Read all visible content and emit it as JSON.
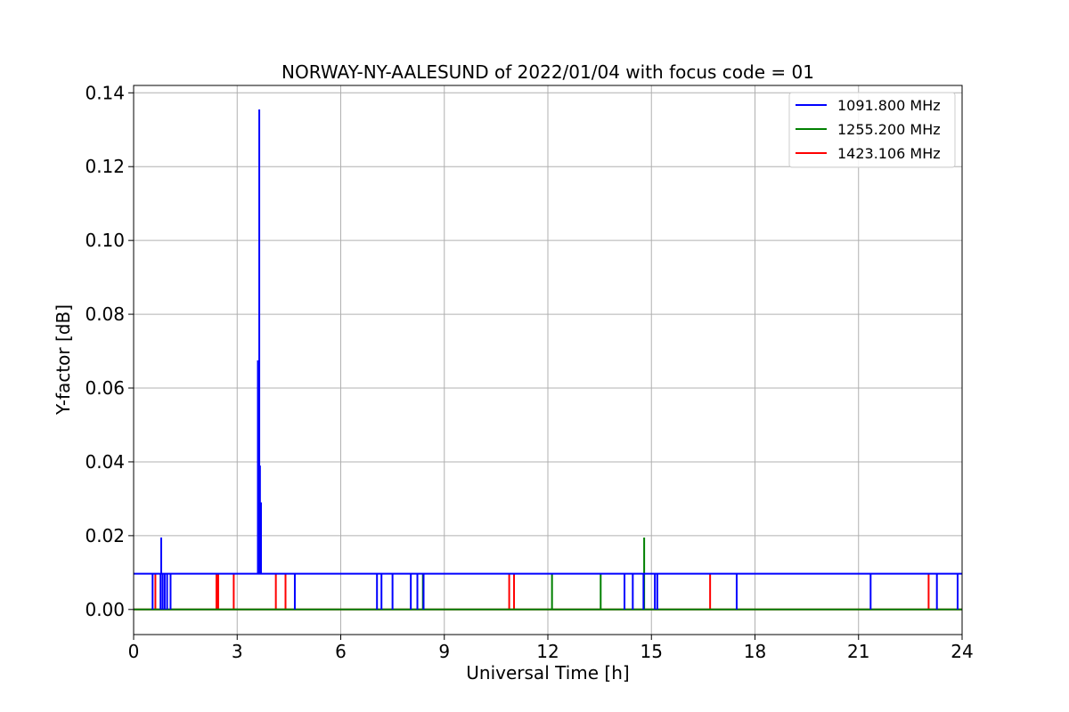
{
  "chart_data": {
    "type": "line",
    "title": "NORWAY-NY-AALESUND of 2022/01/04 with focus code = 01",
    "xlabel": "Universal Time [h]",
    "ylabel": "Y-factor [dB]",
    "xlim": [
      0,
      24
    ],
    "ylim": [
      -0.0068,
      0.142
    ],
    "x_ticks": [
      0,
      3,
      6,
      9,
      12,
      15,
      18,
      21,
      24
    ],
    "x_tick_labels": [
      "0",
      "3",
      "6",
      "9",
      "12",
      "15",
      "18",
      "21",
      "24"
    ],
    "y_ticks": [
      0.0,
      0.02,
      0.04,
      0.06,
      0.08,
      0.1,
      0.12,
      0.14
    ],
    "y_tick_labels": [
      "0.00",
      "0.02",
      "0.04",
      "0.06",
      "0.08",
      "0.10",
      "0.12",
      "0.14"
    ],
    "grid": true,
    "legend_position": "top-right",
    "series": [
      {
        "name": "1091.800 MHz",
        "color": "#0000ff",
        "baseline": 0.0097,
        "spikes": [
          {
            "x": 0.55,
            "y": 0.0
          },
          {
            "x": 0.78,
            "y": 0.0
          },
          {
            "x": 0.8,
            "y": 0.0195
          },
          {
            "x": 0.84,
            "y": 0.0
          },
          {
            "x": 0.9,
            "y": 0.0
          },
          {
            "x": 0.97,
            "y": 0.0
          },
          {
            "x": 1.07,
            "y": 0.0
          },
          {
            "x": 3.6,
            "y": 0.0675
          },
          {
            "x": 3.62,
            "y": 0.058
          },
          {
            "x": 3.64,
            "y": 0.1355
          },
          {
            "x": 3.66,
            "y": 0.039
          },
          {
            "x": 3.69,
            "y": 0.029
          },
          {
            "x": 4.67,
            "y": 0.0
          },
          {
            "x": 7.05,
            "y": 0.0
          },
          {
            "x": 7.18,
            "y": 0.0
          },
          {
            "x": 7.5,
            "y": 0.0
          },
          {
            "x": 8.03,
            "y": 0.0
          },
          {
            "x": 8.22,
            "y": 0.0
          },
          {
            "x": 8.4,
            "y": 0.0
          },
          {
            "x": 14.22,
            "y": 0.0
          },
          {
            "x": 14.46,
            "y": 0.0
          },
          {
            "x": 14.77,
            "y": 0.0
          },
          {
            "x": 15.1,
            "y": 0.0
          },
          {
            "x": 15.17,
            "y": 0.0
          },
          {
            "x": 17.47,
            "y": 0.0
          },
          {
            "x": 21.35,
            "y": 0.0
          },
          {
            "x": 23.27,
            "y": 0.0
          },
          {
            "x": 23.87,
            "y": 0.0
          }
        ]
      },
      {
        "name": "1255.200 MHz",
        "color": "#008000",
        "baseline": 0.0,
        "spikes": [
          {
            "x": 8.38,
            "y": 0.0097
          },
          {
            "x": 12.12,
            "y": 0.0097
          },
          {
            "x": 13.53,
            "y": 0.0097
          },
          {
            "x": 14.79,
            "y": 0.0195
          }
        ]
      },
      {
        "name": "1423.106 MHz",
        "color": "#ff0000",
        "baseline": 0.0,
        "spikes": [
          {
            "x": 0.63,
            "y": 0.0097
          },
          {
            "x": 2.4,
            "y": 0.0097
          },
          {
            "x": 2.45,
            "y": 0.0097
          },
          {
            "x": 2.9,
            "y": 0.0097
          },
          {
            "x": 4.12,
            "y": 0.0097
          },
          {
            "x": 4.4,
            "y": 0.0097
          },
          {
            "x": 10.88,
            "y": 0.0097
          },
          {
            "x": 11.02,
            "y": 0.0097
          },
          {
            "x": 16.7,
            "y": 0.0097
          },
          {
            "x": 23.03,
            "y": 0.0097
          }
        ]
      }
    ]
  }
}
